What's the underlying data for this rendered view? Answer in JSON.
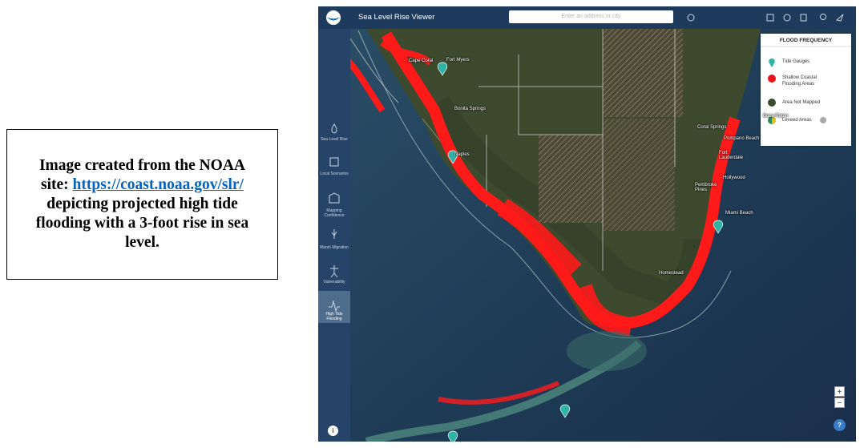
{
  "caption": {
    "line1": "Image created from the NOAA site:",
    "link": "https://coast.noaa.gov/slr/",
    "text": "depicting projected high tide flooding with a 3-foot rise in sea level."
  },
  "header": {
    "title": "Sea Level Rise Viewer",
    "search_placeholder": "Enter an address or city"
  },
  "sidebar": {
    "items": [
      "Sea Level Rise",
      "Local Scenarios",
      "Mapping Confidence",
      "Marsh Migration",
      "Vulnerability",
      "High Tide Flooding"
    ]
  },
  "legend": {
    "title": "FLOOD FREQUENCY",
    "items": [
      "Tide Gauges",
      "Shallow Coastal Flooding Areas",
      "Area Not Mapped",
      "Leveed Areas"
    ]
  },
  "map_labels": [
    "Cape Coral",
    "Fort Myers",
    "Bonita Springs",
    "Naples",
    "Boca Raton",
    "Coral Springs",
    "Pompano Beach",
    "Fort Lauderdale",
    "Hollywood",
    "Pembroke Pines",
    "Miami Beach",
    "Homestead"
  ],
  "controls": {
    "zoom_in": "+",
    "zoom_out": "−",
    "help": "?",
    "info": "i"
  }
}
